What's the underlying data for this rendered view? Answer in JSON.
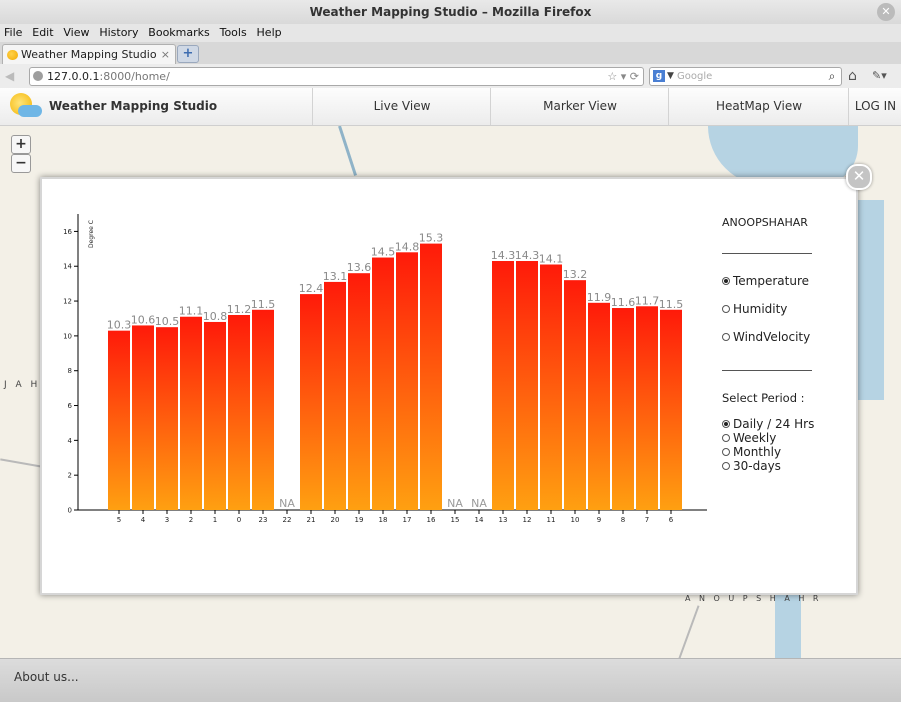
{
  "browser": {
    "window_title": "Weather Mapping Studio – Mozilla Firefox",
    "menu": [
      "File",
      "Edit",
      "View",
      "History",
      "Bookmarks",
      "Tools",
      "Help"
    ],
    "tab_label": "Weather Mapping Studio",
    "new_tab_symbol": "+",
    "url_host": "127.0.0.1",
    "url_path": ":8000/home/",
    "search_placeholder": "Google"
  },
  "site": {
    "title": "Weather Mapping Studio",
    "nav": [
      "Live View",
      "Marker View",
      "HeatMap View",
      "LOG IN"
    ]
  },
  "map": {
    "labels": [
      "J A H A",
      "A N O U P S H A H R"
    ],
    "zoom_in": "+",
    "zoom_out": "−"
  },
  "panel": {
    "location": "ANOOPSHAHAR",
    "metrics": [
      {
        "label": "Temperature",
        "selected": true
      },
      {
        "label": "Humidity",
        "selected": false
      },
      {
        "label": "WindVelocity",
        "selected": false
      }
    ],
    "period_heading": "Select Period :",
    "periods": [
      {
        "label": "Daily / 24 Hrs",
        "selected": true
      },
      {
        "label": "Weekly",
        "selected": false
      },
      {
        "label": "Monthly",
        "selected": false
      },
      {
        "label": "30-days",
        "selected": false
      }
    ]
  },
  "chart_data": {
    "type": "bar",
    "title": "",
    "xlabel": "",
    "ylabel": "Degree C",
    "ylim": [
      0,
      17
    ],
    "yticks": [
      0,
      2,
      4,
      6,
      8,
      10,
      12,
      14,
      16
    ],
    "grid": false,
    "missing_label": "NA",
    "categories": [
      "5",
      "4",
      "3",
      "2",
      "1",
      "0",
      "23",
      "22",
      "21",
      "20",
      "19",
      "18",
      "17",
      "16",
      "15",
      "14",
      "13",
      "12",
      "11",
      "10",
      "9",
      "8",
      "7",
      "6"
    ],
    "values": [
      10.3,
      10.6,
      10.5,
      11.1,
      10.8,
      11.2,
      11.5,
      null,
      12.4,
      13.1,
      13.6,
      14.5,
      14.8,
      15.3,
      null,
      null,
      14.3,
      14.3,
      14.1,
      13.2,
      11.9,
      11.6,
      11.7,
      11.5
    ],
    "colors": {
      "top": "#ff1a0a",
      "bottom": "#ffa011"
    }
  },
  "footer": {
    "about": "About us..."
  }
}
